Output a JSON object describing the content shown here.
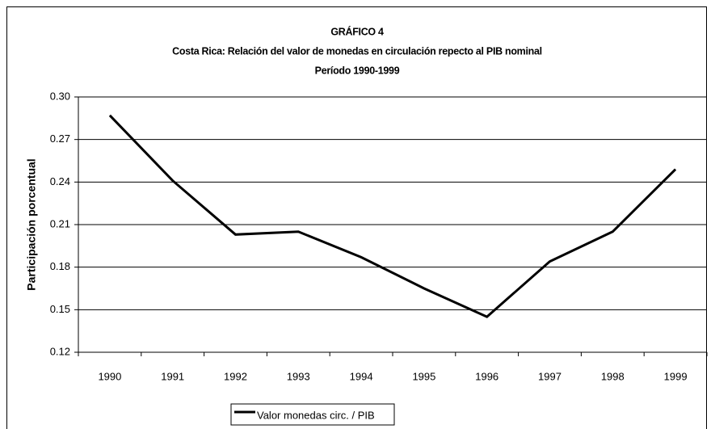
{
  "chart_data": {
    "type": "line",
    "title": "GRÁFICO 4",
    "subtitle": [
      "Costa Rica: Relación del valor de monedas en circulación repecto al PIB nominal",
      "Período 1990-1999"
    ],
    "y_label": "Participación porcentual",
    "categories": [
      "1990",
      "1991",
      "1992",
      "1993",
      "1994",
      "1995",
      "1996",
      "1997",
      "1998",
      "1999"
    ],
    "series": [
      {
        "name": "Valor monedas circ. / PIB",
        "color": "#000000",
        "values": [
          0.287,
          0.241,
          0.203,
          0.205,
          0.187,
          0.165,
          0.145,
          0.184,
          0.205,
          0.249
        ]
      }
    ],
    "ylim": [
      0.12,
      0.3
    ],
    "yticks": [
      0.12,
      0.15,
      0.18,
      0.21,
      0.24,
      0.27,
      {
        "value": 0.3,
        "label": "0.30"
      }
    ],
    "grid": true,
    "legend": "bottom"
  }
}
